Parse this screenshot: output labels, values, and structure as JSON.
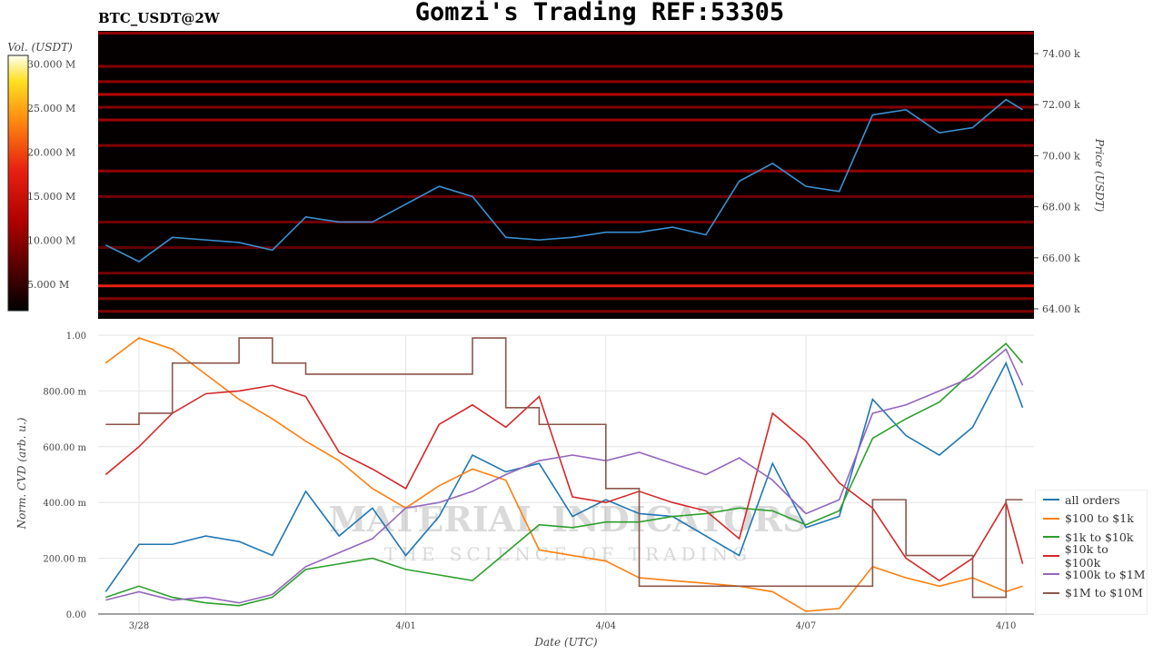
{
  "title": "Gomzi's Trading REF:53305",
  "subtitle": "BTC_USDT@2W",
  "watermark": {
    "line1": "MATERIAL INDICATORS",
    "line2": "THE SCIENCE OF TRADING"
  },
  "chart_data": [
    {
      "type": "heatmap",
      "ylabel": "Price (USDT)",
      "colorbar_label": "Vol. (USDT)",
      "colorbar_ticks": [
        "5.000 M",
        "10.000 M",
        "15.000 M",
        "20.000 M",
        "25.000 M",
        "30.000 M"
      ],
      "colorbar_values": [
        5,
        10,
        15,
        20,
        25,
        30
      ],
      "colorbar_range": [
        2,
        31
      ],
      "colorscale": "hot",
      "yticks": [
        "64.00 k",
        "66.00 k",
        "68.00 k",
        "70.00 k",
        "72.00 k",
        "74.00 k"
      ],
      "ytick_values": [
        64,
        66,
        68,
        70,
        72,
        74
      ],
      "ylim": [
        63.6,
        74.9
      ],
      "liquidity_levels_k": [
        74.8,
        73.5,
        72.9,
        72.4,
        71.9,
        71.4,
        70.4,
        69.4,
        68.4,
        67.4,
        66.4,
        65.4,
        64.9,
        64.4,
        63.9
      ],
      "liquidity_volume_M": [
        9,
        8,
        9,
        12,
        8,
        10,
        8,
        9,
        7,
        7,
        6,
        7,
        17,
        8,
        8
      ],
      "price_series": {
        "color": "#3a8fd0",
        "values": [
          66.5,
          65.85,
          66.8,
          66.7,
          66.6,
          66.3,
          67.6,
          67.4,
          67.4,
          68.1,
          68.8,
          68.4,
          66.8,
          66.7,
          66.8,
          67.0,
          67.0,
          67.2,
          66.9,
          69.0,
          69.7,
          68.8,
          68.6,
          71.6,
          71.8,
          70.9,
          71.1,
          72.2,
          71.8
        ]
      }
    },
    {
      "type": "line",
      "xlabel": "Date (UTC)",
      "ylabel": "Norm. CVD (arb. u.)",
      "ylim": [
        0,
        1
      ],
      "yticks": [
        "0.00",
        "200.00 m",
        "400.00 m",
        "600.00 m",
        "800.00 m",
        "1.00"
      ],
      "ytick_values": [
        0,
        0.2,
        0.4,
        0.6,
        0.8,
        1.0
      ],
      "xticks": [
        "3/28",
        "4/01",
        "4/04",
        "4/07",
        "4/10"
      ],
      "xtick_days": [
        0.5,
        4.5,
        7.5,
        10.5,
        13.5
      ],
      "grid": true,
      "legend_position": "right",
      "x": [
        "3/27 12:00",
        "3/28 00:00",
        "3/28 12:00",
        "3/29 00:00",
        "3/29 12:00",
        "3/30 00:00",
        "3/30 12:00",
        "3/31 00:00",
        "3/31 12:00",
        "4/01 00:00",
        "4/01 12:00",
        "4/02 00:00",
        "4/02 12:00",
        "4/03 00:00",
        "4/03 12:00",
        "4/04 00:00",
        "4/04 12:00",
        "4/05 00:00",
        "4/05 12:00",
        "4/06 00:00",
        "4/06 12:00",
        "4/07 00:00",
        "4/07 12:00",
        "4/08 00:00",
        "4/08 12:00",
        "4/09 00:00",
        "4/09 12:00",
        "4/10 00:00",
        "4/10 06:00"
      ],
      "series": [
        {
          "name": "all orders",
          "color": "#1f77b4",
          "values": [
            0.08,
            0.25,
            0.25,
            0.28,
            0.26,
            0.21,
            0.44,
            0.28,
            0.38,
            0.21,
            0.35,
            0.57,
            0.51,
            0.54,
            0.35,
            0.41,
            0.36,
            0.35,
            0.28,
            0.21,
            0.54,
            0.31,
            0.35,
            0.77,
            0.64,
            0.57,
            0.67,
            0.9,
            0.74
          ]
        },
        {
          "name": "$100 to $1k",
          "color": "#ff7f0e",
          "values": [
            0.9,
            0.99,
            0.95,
            0.86,
            0.77,
            0.7,
            0.62,
            0.55,
            0.45,
            0.38,
            0.46,
            0.52,
            0.48,
            0.23,
            0.21,
            0.19,
            0.13,
            0.12,
            0.11,
            0.1,
            0.08,
            0.01,
            0.02,
            0.17,
            0.13,
            0.1,
            0.13,
            0.08,
            0.1
          ]
        },
        {
          "name": "$1k to $10k",
          "color": "#2ca02c",
          "values": [
            0.06,
            0.1,
            0.06,
            0.04,
            0.03,
            0.06,
            0.16,
            0.18,
            0.2,
            0.16,
            0.14,
            0.12,
            0.22,
            0.32,
            0.31,
            0.33,
            0.33,
            0.35,
            0.36,
            0.38,
            0.37,
            0.32,
            0.37,
            0.63,
            0.7,
            0.76,
            0.87,
            0.97,
            0.9
          ]
        },
        {
          "name": "$10k to $100k",
          "color": "#d62728",
          "values": [
            0.5,
            0.6,
            0.72,
            0.79,
            0.8,
            0.82,
            0.78,
            0.58,
            0.52,
            0.45,
            0.68,
            0.75,
            0.67,
            0.78,
            0.42,
            0.4,
            0.44,
            0.4,
            0.37,
            0.27,
            0.72,
            0.62,
            0.47,
            0.38,
            0.2,
            0.12,
            0.2,
            0.4,
            0.18
          ]
        },
        {
          "name": "$100k to $1M",
          "color": "#9467bd",
          "values": [
            0.05,
            0.08,
            0.05,
            0.06,
            0.04,
            0.07,
            0.17,
            0.22,
            0.27,
            0.38,
            0.4,
            0.44,
            0.5,
            0.55,
            0.57,
            0.55,
            0.58,
            0.54,
            0.5,
            0.56,
            0.48,
            0.36,
            0.41,
            0.72,
            0.75,
            0.8,
            0.85,
            0.95,
            0.82
          ]
        },
        {
          "name": "$1M to $10M",
          "color": "#8c564b",
          "step": true,
          "values": [
            0.68,
            0.72,
            0.9,
            0.9,
            0.99,
            0.9,
            0.86,
            0.86,
            0.86,
            0.86,
            0.86,
            0.99,
            0.74,
            0.68,
            0.68,
            0.45,
            0.1,
            0.1,
            0.1,
            0.1,
            0.1,
            0.1,
            0.1,
            0.41,
            0.21,
            0.21,
            0.06,
            0.41,
            0.41
          ]
        }
      ]
    }
  ]
}
